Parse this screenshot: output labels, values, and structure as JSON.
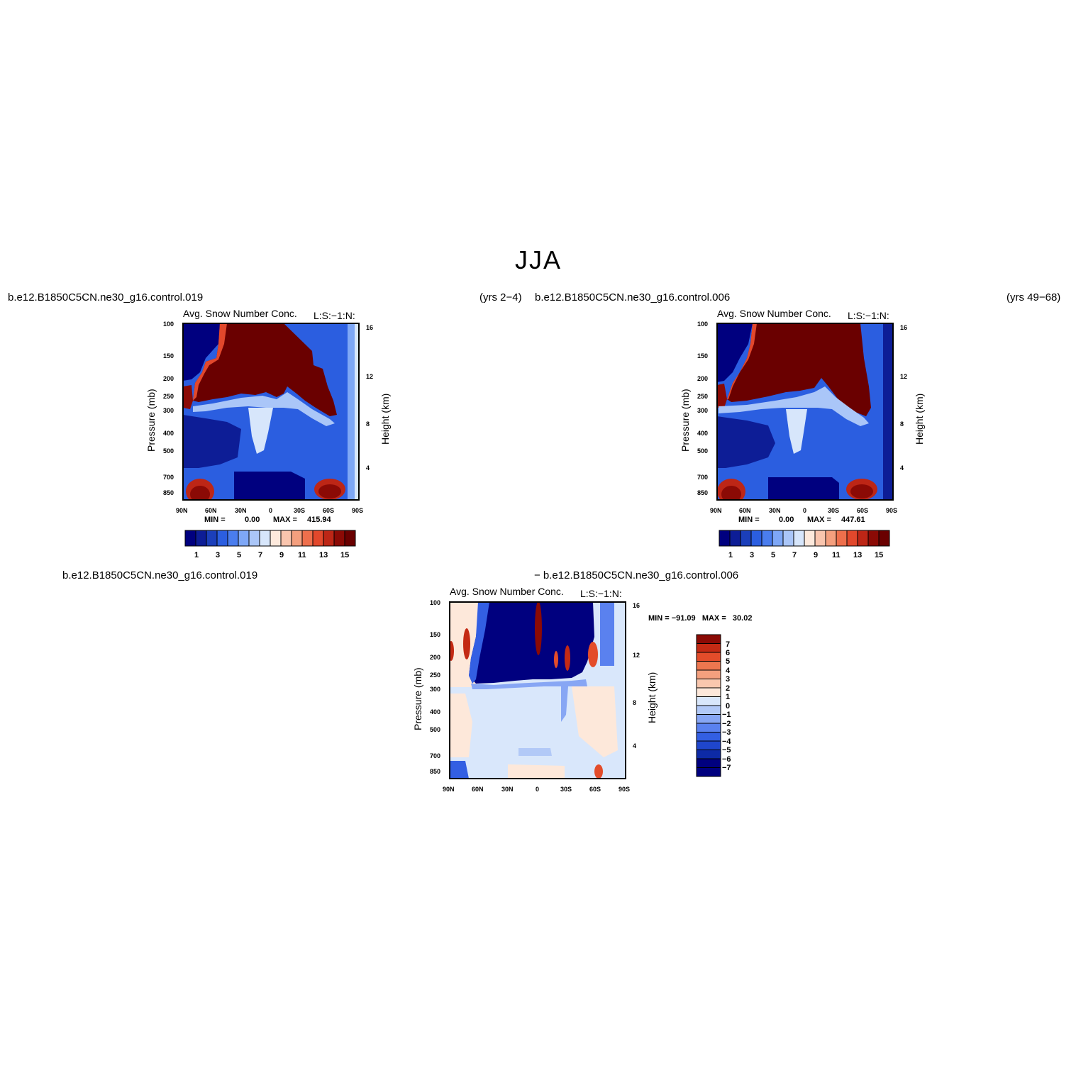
{
  "title": "JJA",
  "labels": {
    "case1_left": "b.e12.B1850C5CN.ne30_g16.control.019",
    "case1_years": "(yrs 2−4)",
    "case2_left": "b.e12.B1850C5CN.ne30_g16.control.006",
    "case2_years": "(yrs 49−68)",
    "diff_case1": "b.e12.B1850C5CN.ne30_g16.control.019",
    "diff_case2": "− b.e12.B1850C5CN.ne30_g16.control.006"
  },
  "colors": {
    "abs_scale": [
      "#00007f",
      "#0d1d96",
      "#1b3fba",
      "#2b5ee0",
      "#4a7dee",
      "#7ea7f6",
      "#aac6f8",
      "#d7e6fb",
      "#fde9dc",
      "#f9c5ae",
      "#f49f7e",
      "#ee6f4c",
      "#e2482c",
      "#bd2616",
      "#8b0a05",
      "#6a0000"
    ],
    "diff_scale": [
      "#00007f",
      "#0d2aa6",
      "#1f46cc",
      "#335fe3",
      "#5a81ef",
      "#87a6f4",
      "#b2c9f7",
      "#d9e7fb",
      "#fde8da",
      "#f9c7ae",
      "#f4a07e",
      "#ed774f",
      "#e34c2a",
      "#c42a14",
      "#8b0a05"
    ]
  },
  "chart_data": [
    {
      "type": "heatmap",
      "title": "Avg. Snow Number Conc.",
      "subtitle": "L:S:−1:N:",
      "ylabel": "Pressure (mb)",
      "ylabel_right": "Height (km)",
      "x_ticks": [
        "90N",
        "60N",
        "30N",
        "0",
        "30S",
        "60S",
        "90S"
      ],
      "y_ticks": [
        "100",
        "150",
        "200",
        "250",
        "300",
        "400",
        "500",
        "700",
        "850"
      ],
      "y_ticks_right": [
        "16",
        "12",
        "8",
        "4"
      ],
      "min_label": "MIN =",
      "min_value": "0.00",
      "max_label": "MAX =",
      "max_value": "415.94",
      "colorbar_labels": [
        "1",
        "3",
        "5",
        "7",
        "9",
        "11",
        "13",
        "15"
      ]
    },
    {
      "type": "heatmap",
      "title": "Avg. Snow Number Conc.",
      "subtitle": "L:S:−1:N:",
      "ylabel": "Pressure (mb)",
      "ylabel_right": "Height (km)",
      "x_ticks": [
        "90N",
        "60N",
        "30N",
        "0",
        "30S",
        "60S",
        "90S"
      ],
      "y_ticks": [
        "100",
        "150",
        "200",
        "250",
        "300",
        "400",
        "500",
        "700",
        "850"
      ],
      "y_ticks_right": [
        "16",
        "12",
        "8",
        "4"
      ],
      "min_label": "MIN =",
      "min_value": "0.00",
      "max_label": "MAX =",
      "max_value": "447.61",
      "colorbar_labels": [
        "1",
        "3",
        "5",
        "7",
        "9",
        "11",
        "13",
        "15"
      ]
    },
    {
      "type": "heatmap",
      "title": "Avg. Snow Number Conc.",
      "subtitle": "L:S:−1:N:",
      "ylabel": "Pressure (mb)",
      "ylabel_right": "Height (km)",
      "x_ticks": [
        "90N",
        "60N",
        "30N",
        "0",
        "30S",
        "60S",
        "90S"
      ],
      "y_ticks": [
        "100",
        "150",
        "200",
        "250",
        "300",
        "400",
        "500",
        "700",
        "850"
      ],
      "y_ticks_right": [
        "16",
        "12",
        "8",
        "4"
      ],
      "minmax_text": "MIN = −91.09   MAX =   30.02",
      "colorbar_labels": [
        "7",
        "6",
        "5",
        "4",
        "3",
        "2",
        "1",
        "0",
        "−1",
        "−2",
        "−3",
        "−4",
        "−5",
        "−6",
        "−7"
      ]
    }
  ]
}
